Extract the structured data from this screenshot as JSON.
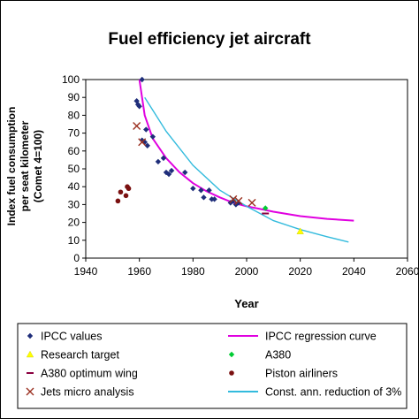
{
  "chart_data": {
    "type": "scatter",
    "title": "Fuel efficiency jet aircraft",
    "xlabel": "Year",
    "ylabel_lines": [
      "Index fuel consumption",
      "per seat kilometer",
      "(Comet 4=100)"
    ],
    "xlim": [
      1940,
      2060
    ],
    "ylim": [
      0,
      100
    ],
    "x_ticks": [
      "1940",
      "1960",
      "1980",
      "2000",
      "2020",
      "2040",
      "2060"
    ],
    "y_ticks": [
      "0",
      "10",
      "20",
      "30",
      "40",
      "50",
      "60",
      "70",
      "80",
      "90",
      "100"
    ],
    "grid": false,
    "legend_position": "bottom",
    "series": [
      {
        "name": "IPCC values",
        "marker": "diamond",
        "color": "#1f2e7a",
        "points": [
          [
            1961,
            100
          ],
          [
            1959,
            88
          ],
          [
            1959.5,
            86
          ],
          [
            1960,
            85
          ],
          [
            1961,
            66
          ],
          [
            1962,
            65
          ],
          [
            1962.5,
            72
          ],
          [
            1963,
            63
          ],
          [
            1965,
            68
          ],
          [
            1967,
            54
          ],
          [
            1969,
            56
          ],
          [
            1970,
            48
          ],
          [
            1971,
            47
          ],
          [
            1972,
            49
          ],
          [
            1977,
            48
          ],
          [
            1980,
            39
          ],
          [
            1983,
            38
          ],
          [
            1984,
            34
          ],
          [
            1986,
            38
          ],
          [
            1987,
            33
          ],
          [
            1988,
            33
          ],
          [
            1994,
            31
          ],
          [
            1995,
            32
          ],
          [
            1996,
            30
          ],
          [
            1997,
            31
          ]
        ]
      },
      {
        "name": "Research target",
        "marker": "triangle",
        "color": "#ffff00",
        "points": [
          [
            2020,
            15
          ]
        ]
      },
      {
        "name": "A380 optimum wing",
        "marker": "dash",
        "color": "#8b0040",
        "points": [
          [
            2007,
            25
          ]
        ]
      },
      {
        "name": "Jets micro analysis",
        "marker": "x",
        "color": "#9b3020",
        "points": [
          [
            1959,
            74
          ],
          [
            1961,
            65
          ],
          [
            1995,
            33
          ],
          [
            1997,
            32
          ],
          [
            2002,
            31
          ]
        ]
      },
      {
        "name": "IPCC regression curve",
        "marker": "line",
        "color": "#e000e0",
        "points": [
          [
            1960,
            100
          ],
          [
            1962,
            80
          ],
          [
            1965,
            67
          ],
          [
            1970,
            56
          ],
          [
            1975,
            48
          ],
          [
            1980,
            42
          ],
          [
            1985,
            37.5
          ],
          [
            1990,
            34
          ],
          [
            1995,
            31
          ],
          [
            2000,
            29
          ],
          [
            2005,
            27.5
          ],
          [
            2010,
            26
          ],
          [
            2020,
            23.5
          ],
          [
            2030,
            22
          ],
          [
            2040,
            21
          ]
        ]
      },
      {
        "name": "A380",
        "marker": "diamond",
        "color": "#00cc33",
        "points": [
          [
            2007,
            28
          ]
        ]
      },
      {
        "name": "Piston airliners",
        "marker": "circle",
        "color": "#7a1010",
        "points": [
          [
            1952,
            32
          ],
          [
            1953,
            37
          ],
          [
            1955,
            35
          ],
          [
            1955.5,
            40
          ],
          [
            1956,
            39
          ]
        ]
      },
      {
        "name": "Const. ann. reduction of 3%",
        "marker": "line",
        "color": "#33bbdd",
        "points": [
          [
            1962,
            90
          ],
          [
            1970,
            71
          ],
          [
            1980,
            52
          ],
          [
            1990,
            38
          ],
          [
            2000,
            29
          ],
          [
            2010,
            21
          ],
          [
            2020,
            16
          ],
          [
            2030,
            12
          ],
          [
            2038,
            9
          ]
        ]
      }
    ]
  }
}
